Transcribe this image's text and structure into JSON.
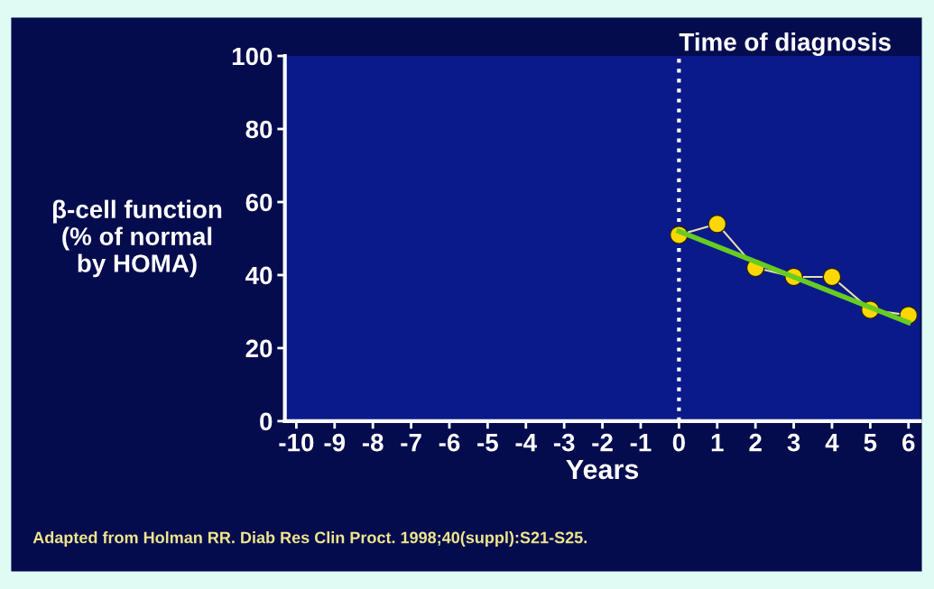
{
  "chart_data": {
    "type": "line",
    "xlabel": "Years",
    "ylabel": "β-cell function\n(% of normal\nby HOMA)",
    "x": [
      0,
      1,
      2,
      3,
      4,
      5,
      6
    ],
    "series": [
      {
        "color": "#ffd700",
        "values": [
          51,
          54,
          42,
          39.5,
          39.5,
          30.5,
          29
        ],
        "marker": "circle"
      },
      {
        "type": "line",
        "color": "#66cc22",
        "x": [
          0,
          6
        ],
        "values": [
          52,
          27
        ],
        "marker": "none"
      }
    ],
    "xlim": [
      -10.3,
      6.3
    ],
    "ylim": [
      0,
      100
    ],
    "xticks": [
      -10,
      -9,
      -8,
      -7,
      -6,
      -5,
      -4,
      -3,
      -2,
      -1,
      0,
      1,
      2,
      3,
      4,
      5,
      6
    ],
    "yticks": [
      0,
      20,
      40,
      60,
      80,
      100
    ],
    "ref_lines": [
      {
        "axis": "x",
        "value": 0,
        "label": "Time of diagnosis",
        "color": "#ffffff",
        "line_style": "dotted"
      }
    ],
    "annotations": [
      "Adapted from Holman RR. Diab Res Clin Proct. 1998;40(suppl):S21-S25."
    ],
    "grid": false,
    "legend": false
  }
}
